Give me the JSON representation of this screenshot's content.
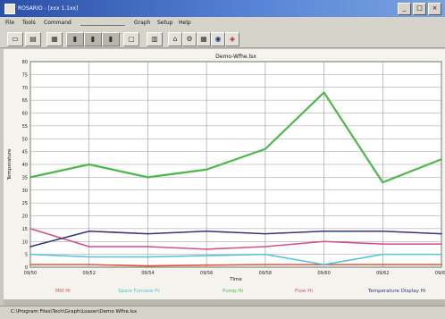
{
  "window": {
    "title": "ROSARIO - [xxx 1.1xx]"
  },
  "menu": {
    "items": [
      "File",
      "Tools",
      "Command",
      "",
      "Graph",
      "Setup",
      "Help"
    ]
  },
  "toolbar": {
    "icons": [
      "new-icon",
      "open-icon",
      "print-icon",
      "chart-view-icon",
      "table-view-icon",
      "grid-view-icon",
      "zoom-icon",
      "pan-icon",
      "export-icon",
      "settings-icon",
      "info-icon",
      "help-icon"
    ]
  },
  "status": {
    "path": "C:\\Program Files\\Tech\\Graph\\Loaser\\Demo Wfhe.lsx"
  },
  "colors": {
    "series_orange": "#e0553a",
    "series_cyan": "#4fc4d4",
    "series_green": "#4cb84a",
    "series_pink": "#d44f8a",
    "series_navy": "#34357a",
    "title_bar": "#2a4fa8"
  },
  "chart_data": {
    "type": "line",
    "title": "Demo-Wfhe.lsx",
    "xlabel": "Time",
    "ylabel": "Temperature",
    "ylim": [
      0,
      80
    ],
    "grid": true,
    "legend_position": "bottom",
    "x_ticks": [
      "09/50",
      "09/52",
      "09/54",
      "09/56",
      "09/58",
      "09/60",
      "09/62",
      "09/64"
    ],
    "y_ticks": [
      "0",
      "5",
      "10",
      "15",
      "20",
      "25",
      "30",
      "35",
      "40",
      "45",
      "50",
      "55",
      "60",
      "65",
      "70",
      "75",
      "80"
    ],
    "x": [
      0,
      1,
      2,
      3,
      4,
      5,
      6,
      7
    ],
    "series": [
      {
        "name": "Mill Hi",
        "color": "#e0553a",
        "values": [
          1,
          1,
          0.5,
          0.8,
          1,
          1,
          1,
          1
        ]
      },
      {
        "name": "Spare Furnace Pt",
        "color": "#4fc4d4",
        "values": [
          5,
          4,
          4,
          4.5,
          5,
          1,
          5,
          5
        ]
      },
      {
        "name": "Pump Hi",
        "color": "#4cb84a",
        "values": [
          35,
          40,
          35,
          38,
          46,
          68,
          33,
          42
        ]
      },
      {
        "name": "Flow Hi",
        "color": "#d44f8a",
        "values": [
          15,
          8,
          8,
          7,
          8,
          10,
          9,
          9
        ]
      },
      {
        "name": "Temperature Display Hi",
        "color": "#34357a",
        "values": [
          8,
          14,
          13,
          14,
          13,
          14,
          14,
          13
        ]
      }
    ]
  }
}
